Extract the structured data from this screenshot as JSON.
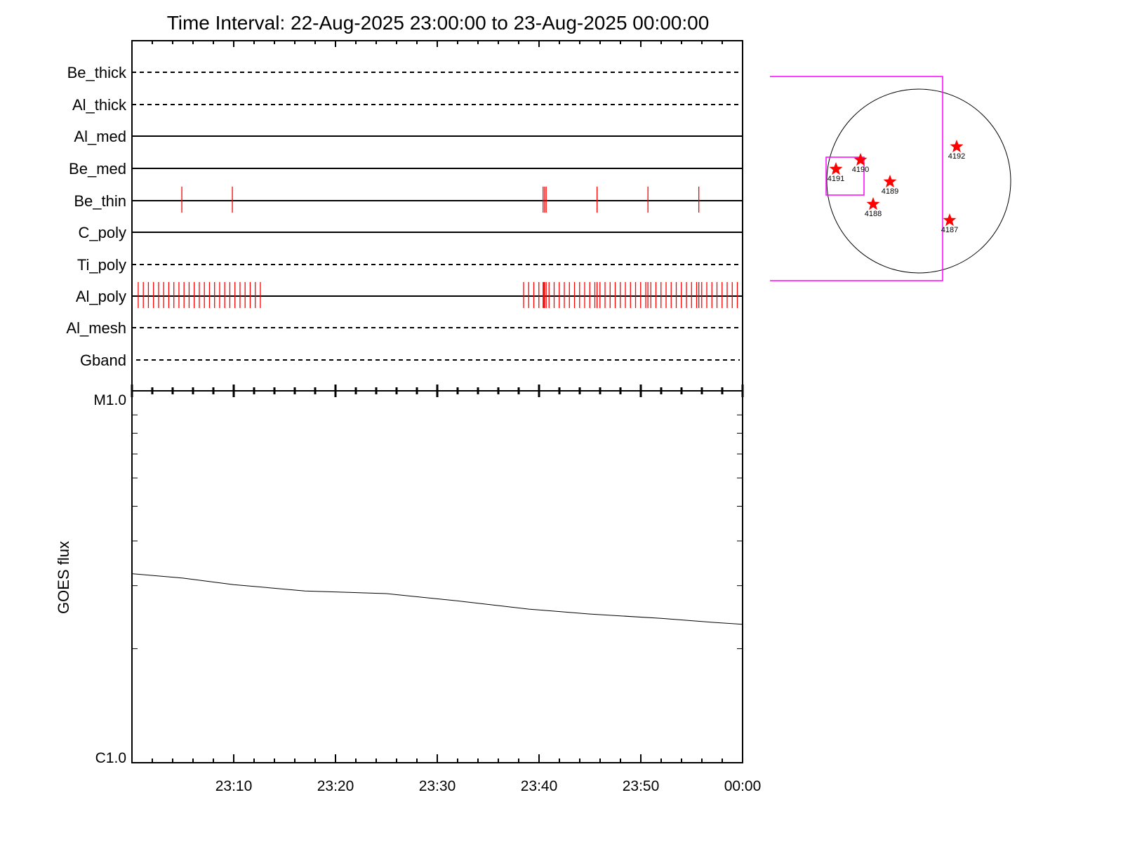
{
  "chart_data": [
    {
      "type": "event-timeline",
      "title": "Time Interval: 22-Aug-2025 23:00:00 to 23-Aug-2025 00:00:00",
      "xlim": [
        "23:00",
        "00:00"
      ],
      "x_major_ticks": [
        "23:10",
        "23:20",
        "23:30",
        "23:40",
        "23:50",
        "00:00"
      ],
      "mark_color": "#ff0000",
      "channels": [
        {
          "name": "Be_thick",
          "line": "dashed",
          "events": []
        },
        {
          "name": "Al_thick",
          "line": "dashed",
          "events": []
        },
        {
          "name": "Al_med",
          "line": "solid",
          "events": []
        },
        {
          "name": "Be_med",
          "line": "solid",
          "events": []
        },
        {
          "name": "Be_thin",
          "line": "solid",
          "events": [
            "23:04:54",
            "23:09:52",
            "23:40:24",
            "23:40:33",
            "23:40:42",
            "23:45:42",
            "23:50:42",
            "23:55:42"
          ]
        },
        {
          "name": "C_poly",
          "line": "solid",
          "events": []
        },
        {
          "name": "Ti_poly",
          "line": "dashed",
          "events": []
        },
        {
          "name": "Al_poly",
          "line": "solid",
          "events": [
            "23:00:37",
            "23:01:07",
            "23:01:37",
            "23:02:07",
            "23:02:37",
            "23:03:07",
            "23:03:37",
            "23:04:07",
            "23:04:37",
            "23:05:07",
            "23:05:37",
            "23:06:07",
            "23:06:37",
            "23:07:07",
            "23:07:37",
            "23:08:07",
            "23:08:37",
            "23:09:07",
            "23:09:37",
            "23:10:07",
            "23:10:37",
            "23:11:07",
            "23:11:37",
            "23:12:07",
            "23:12:37",
            "23:38:29",
            "23:38:59",
            "23:39:29",
            "23:39:59",
            "23:40:24",
            "23:40:29",
            "23:40:33",
            "23:40:42",
            "23:40:59",
            "23:41:29",
            "23:41:59",
            "23:42:29",
            "23:42:59",
            "23:43:29",
            "23:43:59",
            "23:44:29",
            "23:44:59",
            "23:45:29",
            "23:45:42",
            "23:45:59",
            "23:46:29",
            "23:46:59",
            "23:47:29",
            "23:47:59",
            "23:48:29",
            "23:48:59",
            "23:49:29",
            "23:49:59",
            "23:50:29",
            "23:50:42",
            "23:50:59",
            "23:51:29",
            "23:51:59",
            "23:52:29",
            "23:52:59",
            "23:53:29",
            "23:53:59",
            "23:54:29",
            "23:54:59",
            "23:55:29",
            "23:55:42",
            "23:55:59",
            "23:56:29",
            "23:56:59",
            "23:57:29",
            "23:57:59",
            "23:58:29",
            "23:58:59",
            "23:59:29"
          ]
        },
        {
          "name": "Al_mesh",
          "line": "dashed",
          "events": []
        },
        {
          "name": "Gband",
          "line": "dashed",
          "events": []
        }
      ]
    },
    {
      "type": "line",
      "ylabel": "GOES flux",
      "yscale": "log",
      "ylim": [
        1e-06,
        1e-05
      ],
      "y_tick_labels": [
        "C1.0",
        "M1.0"
      ],
      "xlim": [
        "23:00",
        "00:00"
      ],
      "x_tick_labels": [
        "23:10",
        "23:20",
        "23:30",
        "23:40",
        "23:50",
        "00:00"
      ],
      "line_color": "#000000",
      "x": [
        "23:00",
        "23:05",
        "23:10",
        "23:17",
        "23:25",
        "23:32",
        "23:39",
        "23:45",
        "23:52",
        "23:57",
        "00:00"
      ],
      "y": [
        3.24e-06,
        3.15e-06,
        3.02e-06,
        2.9e-06,
        2.85e-06,
        2.72e-06,
        2.58e-06,
        2.5e-06,
        2.43e-06,
        2.37e-06,
        2.34e-06
      ]
    },
    {
      "type": "solar-disk-map",
      "box_color": "#ff00ff",
      "marker_color": "#ff0000",
      "regions": [
        "4191",
        "4190",
        "4189",
        "4188",
        "4192",
        "4187"
      ]
    }
  ]
}
